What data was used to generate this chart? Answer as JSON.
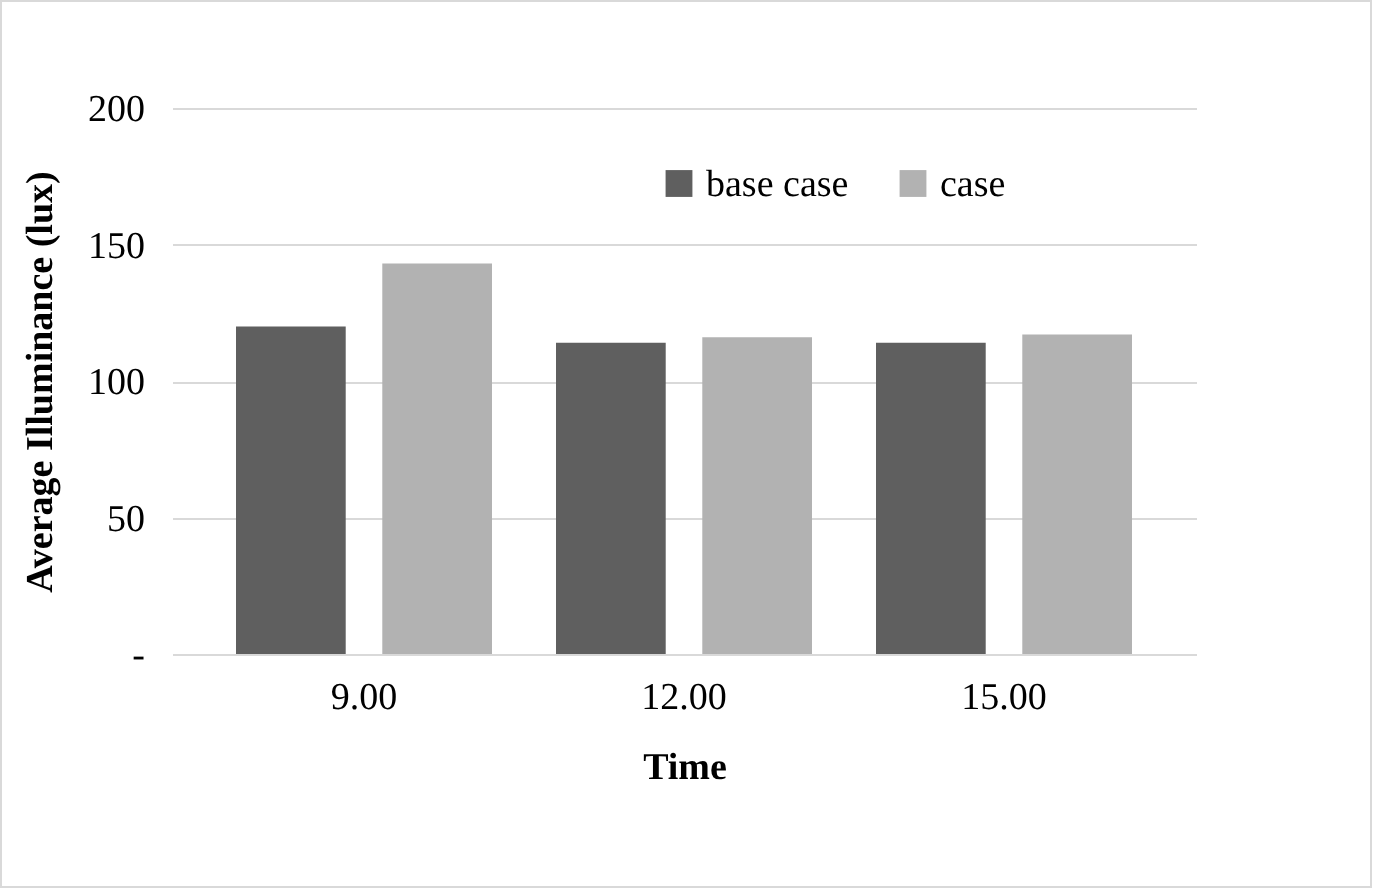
{
  "chart_data": {
    "type": "bar",
    "xlabel": "Time",
    "ylabel": "Average Illuminance (lux)",
    "categories": [
      "9.00",
      "12.00",
      "15.00"
    ],
    "series": [
      {
        "name": "base case",
        "color": "#5f5f5f",
        "values": [
          120,
          114,
          114
        ]
      },
      {
        "name": "case",
        "color": "#b2b2b2",
        "values": [
          143,
          116,
          117
        ]
      }
    ],
    "ylim": [
      0,
      200
    ],
    "yticks": [
      {
        "value": 0,
        "label": "-"
      },
      50,
      100,
      150,
      200
    ],
    "grid": "y",
    "legend": "top right"
  }
}
